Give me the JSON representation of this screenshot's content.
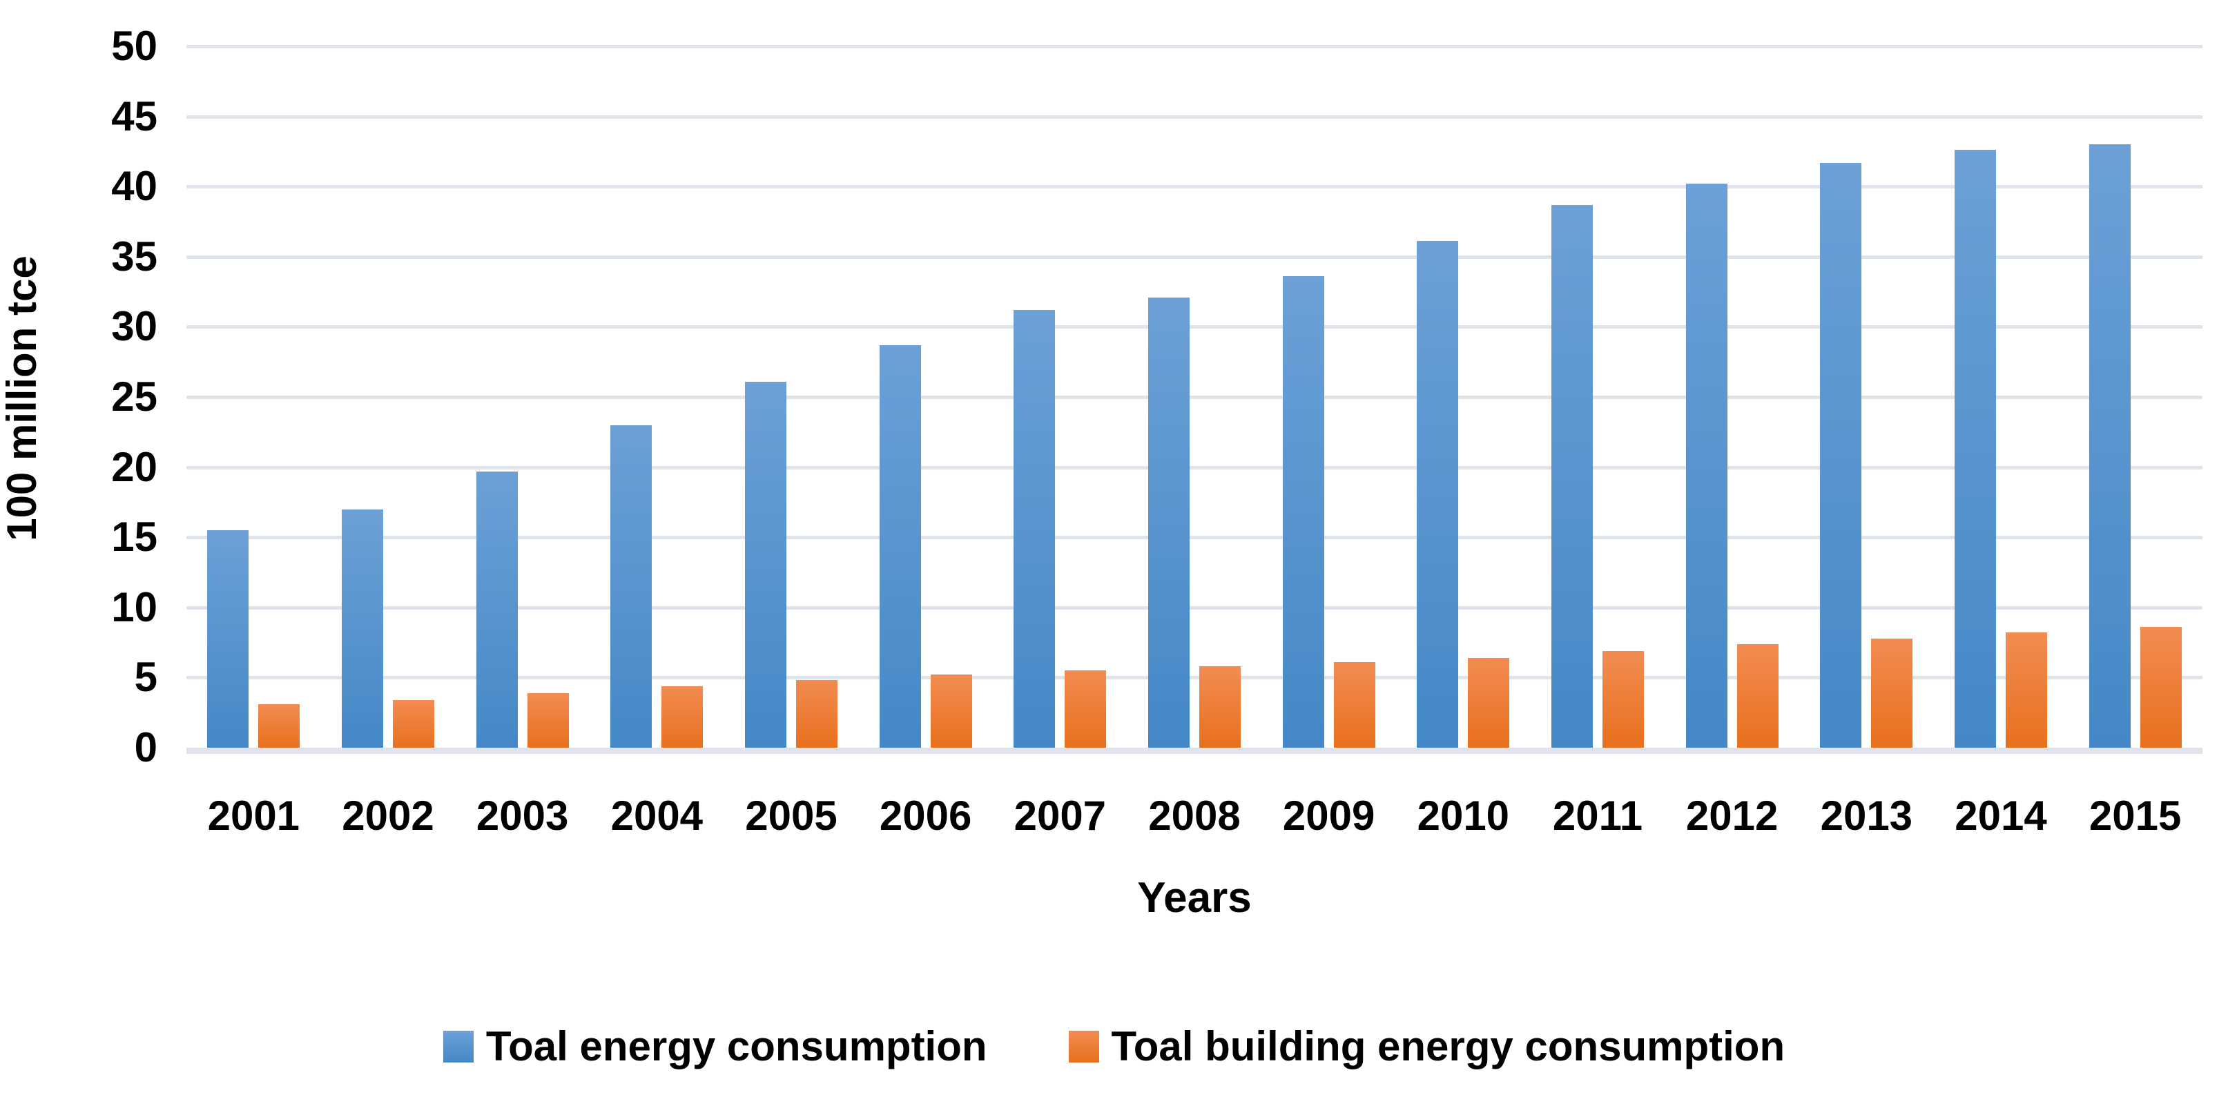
{
  "chart_data": {
    "type": "bar",
    "title": "",
    "xlabel": "Years",
    "ylabel": "100 million tce",
    "ylim": [
      0,
      50
    ],
    "y_tick_step": 5,
    "y_ticks": [
      0,
      5,
      10,
      15,
      20,
      25,
      30,
      35,
      40,
      45,
      50
    ],
    "grid": true,
    "gridline_color": "#DFE3EB",
    "legend_position": "bottom",
    "categories": [
      "2001",
      "2002",
      "2003",
      "2004",
      "2005",
      "2006",
      "2007",
      "2008",
      "2009",
      "2010",
      "2011",
      "2012",
      "2013",
      "2014",
      "2015"
    ],
    "series": [
      {
        "name": "Toal energy consumption",
        "color": "#5B9BD5",
        "color_top": "#6CA0D7",
        "color_bottom": "#4488C7",
        "values": [
          15.5,
          17.0,
          19.7,
          23.0,
          26.1,
          28.7,
          31.2,
          32.1,
          33.6,
          36.1,
          38.7,
          40.2,
          41.7,
          42.6,
          43.0
        ]
      },
      {
        "name": "Toal building energy consumption",
        "color": "#ED7D31",
        "color_top": "#F28C52",
        "color_bottom": "#E8701D",
        "values": [
          3.1,
          3.4,
          3.9,
          4.4,
          4.8,
          5.2,
          5.5,
          5.8,
          6.1,
          6.4,
          6.9,
          7.4,
          7.8,
          8.2,
          8.6
        ]
      }
    ]
  }
}
